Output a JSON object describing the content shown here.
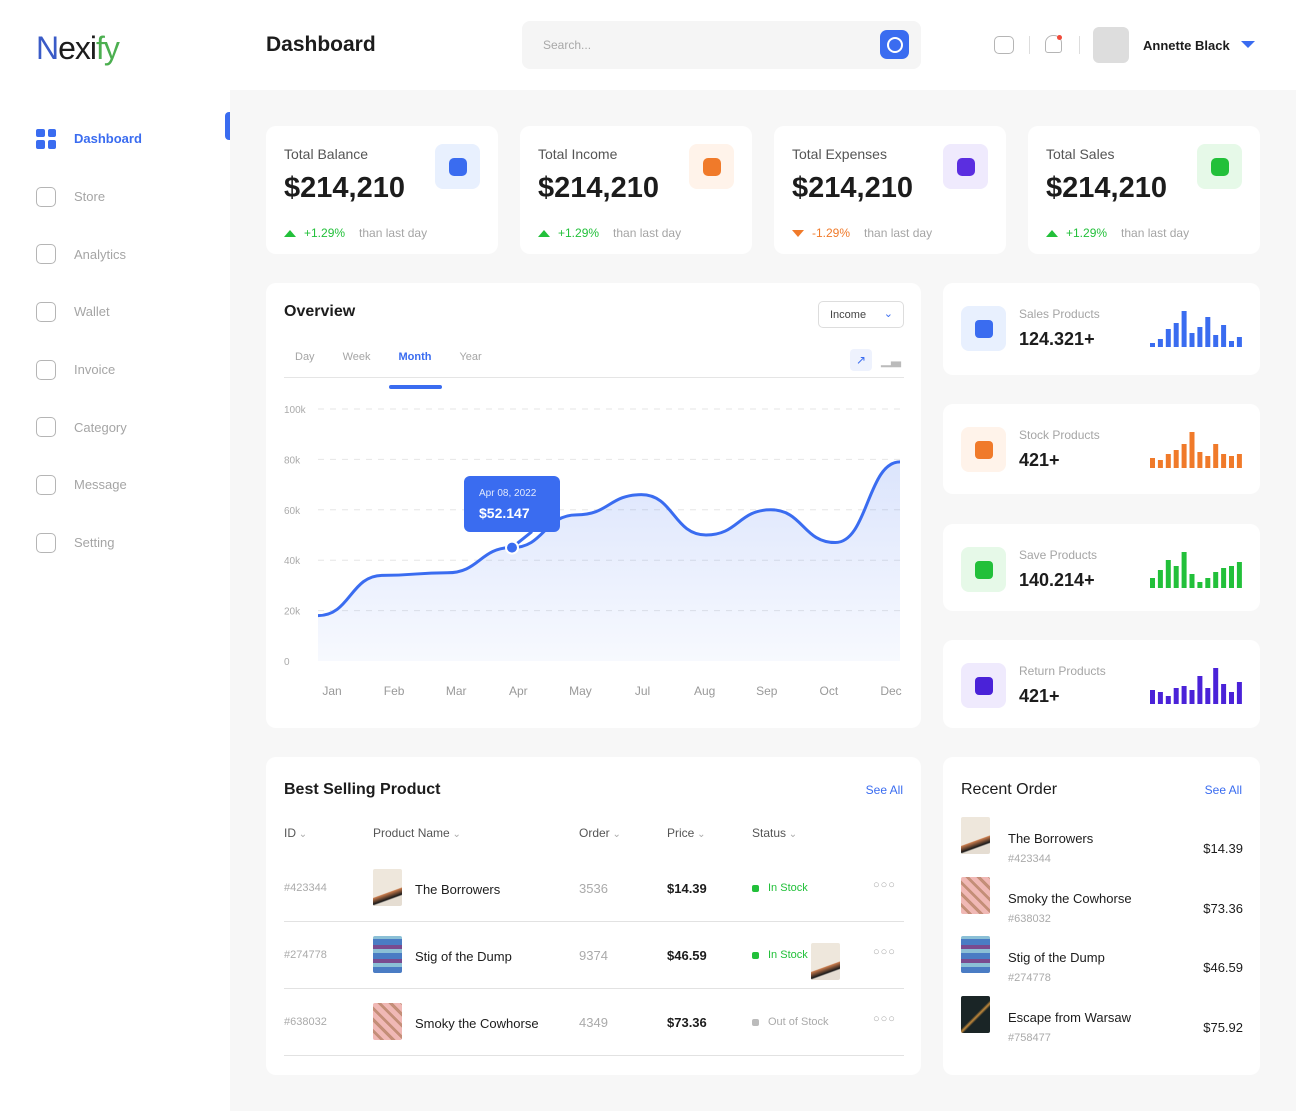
{
  "app": {
    "logo": "Nexify",
    "page_title": "Dashboard"
  },
  "sidebar": {
    "items": [
      {
        "label": "Dashboard",
        "icon": "grid-icon",
        "active": true
      },
      {
        "label": "Store",
        "icon": "store-icon"
      },
      {
        "label": "Analytics",
        "icon": "analytics-icon"
      },
      {
        "label": "Wallet",
        "icon": "wallet-icon"
      },
      {
        "label": "Invoice",
        "icon": "invoice-icon"
      },
      {
        "label": "Category",
        "icon": "category-icon"
      },
      {
        "label": "Message",
        "icon": "message-icon"
      },
      {
        "label": "Setting",
        "icon": "gear-icon"
      }
    ]
  },
  "header": {
    "search_placeholder": "Search...",
    "user_name": "Annette Black"
  },
  "stats": [
    {
      "label": "Total Balance",
      "value": "$214,210",
      "change": "+1.29%",
      "direction": "up",
      "suffix": "than last day",
      "icon": "wallet-icon",
      "color": "#3a6cf0",
      "bg": "#e8f0fe"
    },
    {
      "label": "Total Income",
      "value": "$214,210",
      "change": "+1.29%",
      "direction": "up",
      "suffix": "than last day",
      "icon": "money-bag-icon",
      "color": "#f07a2a",
      "bg": "#fff3ea"
    },
    {
      "label": "Total Expenses",
      "value": "$214,210",
      "change": "-1.29%",
      "direction": "down",
      "suffix": "than last day",
      "icon": "tag-icon",
      "color": "#5b2ee0",
      "bg": "#efeafd"
    },
    {
      "label": "Total Sales",
      "value": "$214,210",
      "change": "+1.29%",
      "direction": "up",
      "suffix": "than last day",
      "icon": "shopping-bag-icon",
      "color": "#22c03a",
      "bg": "#e6f9e8"
    }
  ],
  "colors": {
    "up": "#22c03a",
    "down": "#f07a2a",
    "accent": "#3a6cf0"
  },
  "overview": {
    "title": "Overview",
    "dropdown": "Income",
    "tabs": [
      "Day",
      "Week",
      "Month",
      "Year"
    ],
    "active_tab": "Month",
    "tooltip": {
      "date": "Apr 08, 2022",
      "value": "$52.147"
    }
  },
  "chart_data": {
    "type": "area",
    "x": [
      "Jan",
      "Feb",
      "Mar",
      "Apr",
      "May",
      "Jul",
      "Aug",
      "Sep",
      "Oct",
      "Dec"
    ],
    "yticks": [
      "100k",
      "80k",
      "60k",
      "40k",
      "20k",
      "0"
    ],
    "ylim": [
      0,
      100000
    ],
    "values": [
      18000,
      34000,
      35000,
      45000,
      58000,
      66000,
      50000,
      60000,
      47000,
      79000
    ],
    "color": "#3a6cf0",
    "grid": "horizontal-dashed"
  },
  "side_cards": [
    {
      "label": "Sales Products",
      "value": "124.321+",
      "color": "#3a6cf0",
      "bg": "#e8f0fe",
      "icon": "cube-icon",
      "bars": [
        2,
        4,
        9,
        12,
        18,
        7,
        10,
        15,
        6,
        11,
        3,
        5
      ]
    },
    {
      "label": "Stock Products",
      "value": "421+",
      "color": "#f07a2a",
      "bg": "#fff3ea",
      "icon": "cube-icon",
      "bars": [
        5,
        4,
        7,
        9,
        12,
        18,
        8,
        6,
        12,
        7,
        6,
        7
      ]
    },
    {
      "label": "Save Products",
      "value": "140.214+",
      "color": "#22c03a",
      "bg": "#e6f9e8",
      "icon": "box-icon",
      "bars": [
        5,
        9,
        14,
        11,
        18,
        7,
        3,
        5,
        8,
        10,
        11,
        13
      ]
    },
    {
      "label": "Return Products",
      "value": "421+",
      "color": "#4a22d8",
      "bg": "#efeafd",
      "icon": "return-icon",
      "bars": [
        7,
        6,
        4,
        8,
        9,
        7,
        14,
        8,
        18,
        10,
        6,
        11
      ]
    }
  ],
  "best_selling": {
    "title": "Best Selling Product",
    "see_all": "See All",
    "columns": [
      "ID",
      "Product Name",
      "Order",
      "Price",
      "Status"
    ],
    "rows": [
      {
        "id": "#423344",
        "name": "The Borrowers",
        "order": "3536",
        "price": "$14.39",
        "status": "In Stock",
        "thumb": "t1"
      },
      {
        "id": "#274778",
        "name": "Stig of the Dump",
        "order": "9374",
        "price": "$46.59",
        "status": "In Stock",
        "thumb": "t2"
      },
      {
        "id": "#638032",
        "name": "Smoky the Cowhorse",
        "order": "4349",
        "price": "$73.36",
        "status": "Out of Stock",
        "thumb": "t3"
      }
    ]
  },
  "recent_order": {
    "title": "Recent Order",
    "see_all": "See All",
    "items": [
      {
        "name": "The Borrowers",
        "id": "#423344",
        "price": "$14.39",
        "thumb": "t1"
      },
      {
        "name": "Smoky the Cowhorse",
        "id": "#638032",
        "price": "$73.36",
        "thumb": "t3"
      },
      {
        "name": "Stig of the Dump",
        "id": "#274778",
        "price": "$46.59",
        "thumb": "t2"
      },
      {
        "name": "Escape from Warsaw",
        "id": "#758477",
        "price": "$75.92",
        "thumb": "t4"
      }
    ]
  }
}
